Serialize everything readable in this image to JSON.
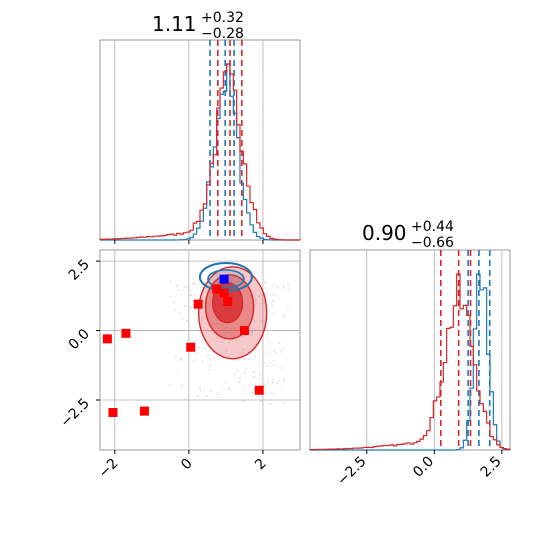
{
  "chart_data": {
    "type": "corner",
    "colors": {
      "series_a": "#1f77b4",
      "series_b": "#d62728",
      "grid": "#b0b0b0",
      "axes": "#808080"
    },
    "panels": [
      {
        "id": "hist1",
        "type": "histogram",
        "title": "1.11",
        "title_sup": "+0.32",
        "title_sub": "−0.28",
        "xlim": [
          -2.4,
          3.0
        ],
        "xticks": [
          -2,
          0,
          2
        ],
        "show_tick_labels": false,
        "blue_quantiles": [
          0.57,
          0.98,
          1.22
        ],
        "red_quantiles": [
          0.78,
          1.11,
          1.43
        ],
        "blue_peak": 1.0,
        "blue_sigma": 0.32,
        "red_peak": 1.1,
        "red_sigma": 0.38
      },
      {
        "id": "hist2",
        "type": "histogram",
        "title": "0.90",
        "title_sup": "+0.44",
        "title_sub": "−0.66",
        "xlim": [
          -4.6,
          2.8
        ],
        "xticks": [
          -2.5,
          0.0,
          2.5
        ],
        "xtick_labels": [
          "−2.5",
          "0.0",
          "2.5"
        ],
        "blue_quantiles": [
          1.25,
          1.65,
          2.05
        ],
        "red_quantiles": [
          0.24,
          0.9,
          1.34
        ],
        "blue_peak": 1.75,
        "blue_sigma": 0.25,
        "red_peak": 0.95,
        "red_sigma": 0.55
      },
      {
        "id": "scatter",
        "type": "scatter_contour",
        "xlim": [
          -2.4,
          3.0
        ],
        "ylim": [
          -4.3,
          2.9
        ],
        "xticks": [
          -2,
          0,
          2
        ],
        "xtick_labels": [
          "−2",
          "0",
          "2"
        ],
        "yticks": [
          -2.5,
          0.0,
          2.5
        ],
        "ytick_labels": [
          "−2.5",
          "0.0",
          "2.5"
        ],
        "red_markers": [
          [
            -2.2,
            -0.3
          ],
          [
            -1.7,
            -0.1
          ],
          [
            -2.05,
            -2.95
          ],
          [
            -1.2,
            -2.9
          ],
          [
            0.05,
            -0.6
          ],
          [
            0.25,
            0.95
          ],
          [
            0.75,
            1.5
          ],
          [
            0.95,
            1.35
          ],
          [
            1.05,
            1.05
          ],
          [
            1.5,
            0.0
          ],
          [
            1.9,
            -2.15
          ]
        ],
        "blue_markers": [
          [
            0.95,
            1.85
          ]
        ],
        "blue_contour_center": [
          1.0,
          2.0
        ],
        "red_contour_center": [
          1.1,
          1.0
        ]
      }
    ]
  }
}
